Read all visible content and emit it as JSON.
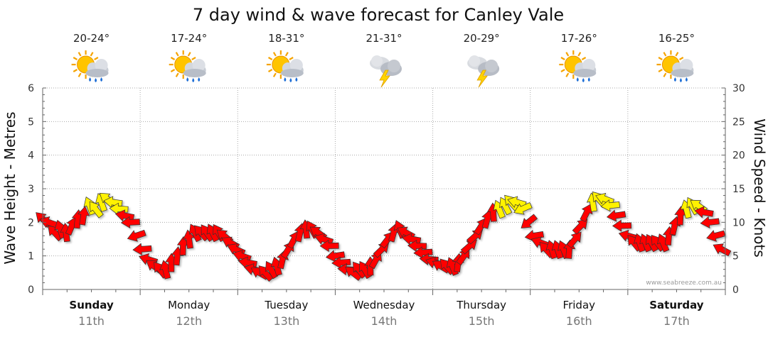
{
  "chart_data": {
    "type": "line",
    "title": "7 day wind & wave forecast for Canley Vale",
    "ylabel_left": "Wave Height - Metres",
    "ylabel_right": "Wind Speed - Knots",
    "ylim_left": [
      0,
      6
    ],
    "ylim_right": [
      0,
      30
    ],
    "yticks_left": [
      "0",
      "1",
      "2",
      "3",
      "4",
      "5",
      "6"
    ],
    "yticks_right": [
      "0",
      "5",
      "10",
      "15",
      "20",
      "25",
      "30"
    ],
    "credit": "www.seabreeze.com.au",
    "days": [
      {
        "name": "Sunday",
        "date": "11th",
        "temp": "20-24°",
        "icon": "sun-cloud-rain-icon",
        "bold": true
      },
      {
        "name": "Monday",
        "date": "12th",
        "temp": "17-24°",
        "icon": "sun-cloud-rain-icon",
        "bold": false
      },
      {
        "name": "Tuesday",
        "date": "13th",
        "temp": "18-31°",
        "icon": "sun-cloud-rain-icon",
        "bold": false
      },
      {
        "name": "Wednesday",
        "date": "14th",
        "temp": "21-31°",
        "icon": "thunderstorm-icon",
        "bold": false
      },
      {
        "name": "Thursday",
        "date": "15th",
        "temp": "20-29°",
        "icon": "thunderstorm-icon",
        "bold": false
      },
      {
        "name": "Friday",
        "date": "16th",
        "temp": "17-26°",
        "icon": "sun-cloud-rain-icon",
        "bold": false
      },
      {
        "name": "Saturday",
        "date": "17th",
        "temp": "16-25°",
        "icon": "sun-cloud-rain-icon",
        "bold": true
      }
    ],
    "series": [
      {
        "name": "Wind Speed (knots)",
        "axis": "right",
        "day_offset": [
          0,
          0.06,
          0.12,
          0.18,
          0.24,
          0.3,
          0.36,
          0.42,
          0.48,
          0.54,
          0.6,
          0.66,
          0.72,
          0.78,
          0.84,
          0.9,
          0.96,
          1.02,
          1.08,
          1.14,
          1.2,
          1.26,
          1.32,
          1.38,
          1.44,
          1.5,
          1.56,
          1.62,
          1.68,
          1.74,
          1.8,
          1.86,
          1.92,
          1.98,
          2.04,
          2.1,
          2.16,
          2.22,
          2.28,
          2.34,
          2.4,
          2.46,
          2.52,
          2.58,
          2.64,
          2.7,
          2.76,
          2.82,
          2.88,
          2.94,
          3.0,
          3.06,
          3.12,
          3.18,
          3.24,
          3.3,
          3.36,
          3.42,
          3.48,
          3.54,
          3.6,
          3.66,
          3.72,
          3.78,
          3.84,
          3.9,
          3.96,
          4.02,
          4.08,
          4.14,
          4.2,
          4.26,
          4.32,
          4.38,
          4.44,
          4.5,
          4.56,
          4.62,
          4.68,
          4.74,
          4.8,
          4.86,
          4.92,
          4.98,
          5.04,
          5.1,
          5.16,
          5.22,
          5.28,
          5.34,
          5.4,
          5.46,
          5.52,
          5.58,
          5.64,
          5.7,
          5.76,
          5.82,
          5.88,
          5.94,
          6.0,
          6.06,
          6.12,
          6.18,
          6.24,
          6.3,
          6.36,
          6.42,
          6.48,
          6.54,
          6.6,
          6.66,
          6.72,
          6.78,
          6.84,
          6.9,
          6.96
        ],
        "values": [
          10.5,
          10,
          8.5,
          9,
          8.5,
          9.5,
          10.5,
          11,
          12.5,
          12,
          13,
          13.5,
          13,
          12,
          11,
          10,
          8,
          6,
          4.5,
          3.5,
          3,
          3,
          4,
          5,
          6.5,
          7.5,
          8.5,
          8.5,
          8.5,
          8.5,
          8.5,
          8,
          7,
          6,
          5,
          4,
          3,
          2.5,
          2.5,
          3,
          3.5,
          4.5,
          6,
          7.5,
          8.5,
          9,
          9,
          8.5,
          7.5,
          6.5,
          5,
          4,
          3,
          2.5,
          3,
          3,
          3.5,
          4.5,
          6,
          7.5,
          8.5,
          9,
          8.5,
          7.5,
          6.5,
          5.5,
          4.5,
          4,
          3.5,
          3.5,
          3.5,
          4,
          5,
          6.5,
          8,
          9.5,
          10.5,
          11.5,
          12,
          12.5,
          13,
          13,
          12,
          10,
          8,
          7,
          6,
          6,
          6,
          6,
          6,
          7.5,
          9.5,
          11.5,
          13,
          13.5,
          13.5,
          12.5,
          11,
          9.5,
          8,
          7,
          7,
          7,
          7,
          7,
          7,
          8,
          9.5,
          11,
          12,
          12.5,
          12.5,
          11.5,
          10,
          8,
          6
        ]
      },
      {
        "name": "Wave Height (m)",
        "axis": "left",
        "values": []
      }
    ]
  },
  "colors": {
    "strong": "#fff200",
    "moderate": "#ff0000",
    "outline": "#333333",
    "grid": "#aaaaaa",
    "axis": "#666666"
  }
}
